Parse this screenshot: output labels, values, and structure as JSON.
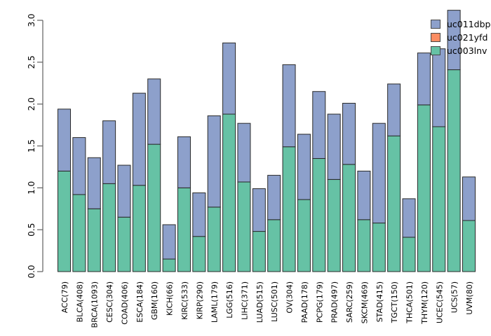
{
  "chart_data": {
    "type": "bar",
    "stacked": true,
    "title": "",
    "xlabel": "",
    "ylabel": "",
    "ylim": [
      0,
      3.0
    ],
    "yticks": [
      "0.0",
      "0.5",
      "1.0",
      "1.5",
      "2.0",
      "2.5",
      "3.0"
    ],
    "grid": false,
    "categories": [
      "ACC(79)",
      "BLCA(408)",
      "BRCA(1093)",
      "CESC(304)",
      "COAD(406)",
      "ESCA(184)",
      "GBM(160)",
      "KICH(66)",
      "KIRC(533)",
      "KIRP(290)",
      "LAML(179)",
      "LGG(516)",
      "LIHC(371)",
      "LUAD(515)",
      "LUSC(501)",
      "OV(304)",
      "PAAD(178)",
      "PCPG(179)",
      "PRAD(497)",
      "SARC(259)",
      "SKCM(469)",
      "STAD(415)",
      "TGCT(150)",
      "THCA(501)",
      "THYM(120)",
      "UCEC(545)",
      "UCS(57)",
      "UVM(80)"
    ],
    "series": [
      {
        "name": "uc003lnv",
        "color": "#66C2A5",
        "values": [
          1.2,
          0.92,
          0.75,
          1.05,
          0.65,
          1.03,
          1.52,
          0.15,
          1.0,
          0.42,
          0.77,
          1.88,
          1.07,
          0.48,
          0.62,
          1.49,
          0.86,
          1.35,
          1.1,
          1.28,
          0.62,
          0.58,
          1.62,
          0.41,
          1.99,
          1.73,
          2.41,
          0.61
        ]
      },
      {
        "name": "uc021yfd",
        "color": "#FC8D62",
        "values": [
          0,
          0,
          0,
          0,
          0,
          0,
          0,
          0,
          0,
          0,
          0,
          0,
          0,
          0,
          0,
          0,
          0,
          0,
          0,
          0,
          0,
          0,
          0,
          0,
          0,
          0,
          0,
          0
        ]
      },
      {
        "name": "uc011dbp",
        "color": "#8DA0CB",
        "values": [
          0.74,
          0.68,
          0.61,
          0.75,
          0.62,
          1.1,
          0.78,
          0.41,
          0.61,
          0.52,
          1.09,
          0.85,
          0.7,
          0.51,
          0.53,
          0.98,
          0.78,
          0.8,
          0.78,
          0.73,
          0.58,
          1.19,
          0.62,
          0.46,
          0.62,
          0.93,
          0.71,
          0.52
        ]
      }
    ],
    "totals": [
      1.94,
      1.6,
      1.36,
      1.8,
      1.27,
      2.13,
      2.3,
      0.56,
      1.61,
      0.94,
      1.86,
      2.73,
      1.77,
      0.99,
      1.15,
      2.47,
      1.64,
      2.15,
      1.88,
      2.01,
      1.2,
      1.77,
      2.24,
      0.87,
      2.61,
      2.66,
      3.12,
      1.13
    ],
    "legend": {
      "position": "top-right",
      "entries": [
        {
          "label": "uc011dbp",
          "color": "#8DA0CB"
        },
        {
          "label": "uc021yfd",
          "color": "#FC8D62"
        },
        {
          "label": "uc003lnv",
          "color": "#66C2A5"
        }
      ]
    },
    "colors": {
      "bar_border": "#2a2a2a",
      "axis": "#606060",
      "text": "#000000",
      "background": "#ffffff"
    }
  }
}
